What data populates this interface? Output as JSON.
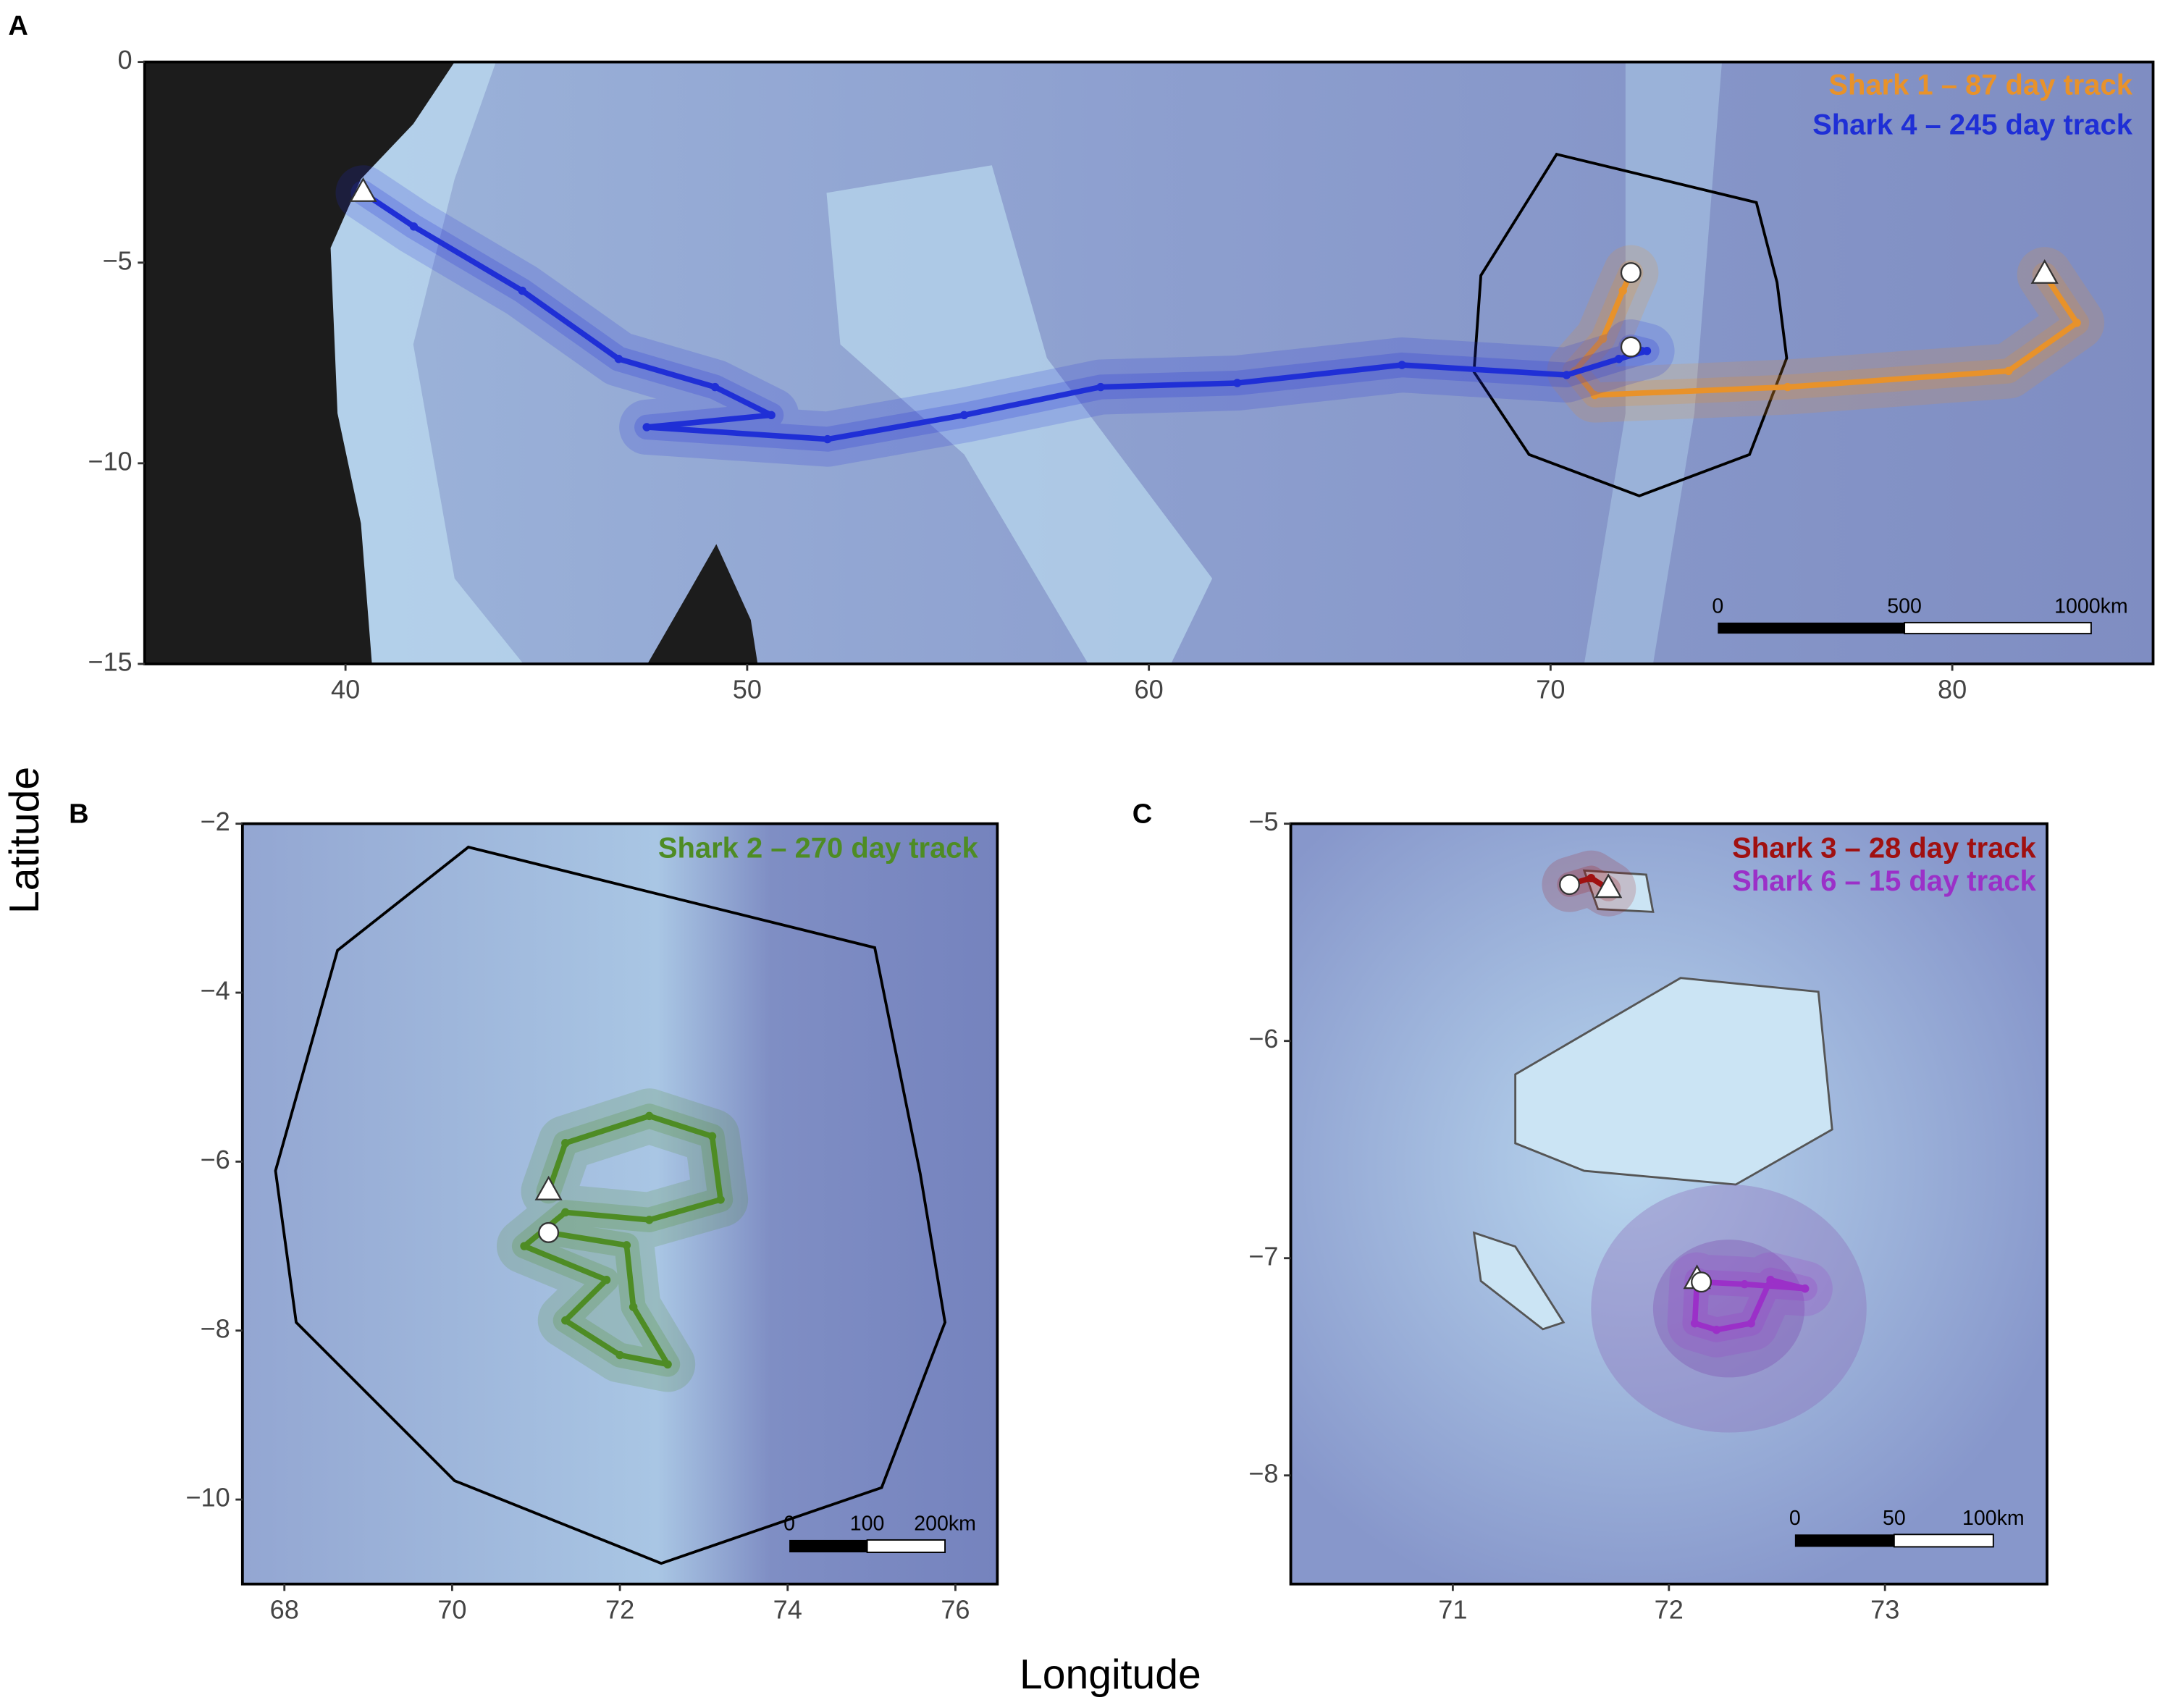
{
  "labels": {
    "x": "Longitude",
    "y": "Latitude"
  },
  "chart_data": [
    {
      "type": "line",
      "panel": "A",
      "xlim": [
        35,
        85
      ],
      "ylim": [
        -15,
        0
      ],
      "xticks": [
        40,
        50,
        60,
        70,
        80
      ],
      "yticks": [
        {
          "value": 0,
          "label": "0"
        },
        {
          "value": -5,
          "label": "−5"
        },
        {
          "value": -10,
          "label": "−10"
        },
        {
          "value": -15,
          "label": "−15"
        }
      ],
      "series": [
        {
          "name": "Shark 1 – 87 day track",
          "color": "#e8922a",
          "x": [
            82.3,
            83.1,
            81.4,
            75.9,
            71.1,
            70.6,
            71.3,
            71.8,
            72.0
          ],
          "values": [
            -5.3,
            -6.5,
            -7.7,
            -8.1,
            -8.3,
            -7.7,
            -6.9,
            -5.7,
            -5.25
          ]
        },
        {
          "name": "Shark 4 – 245 day track",
          "color": "#1f2fd6",
          "x": [
            40.44,
            41.7,
            44.4,
            46.8,
            49.2,
            50.6,
            47.5,
            52.0,
            55.4,
            58.8,
            62.2,
            66.3,
            70.4,
            71.7,
            72.4,
            72.0
          ],
          "values": [
            -3.26,
            -4.1,
            -5.7,
            -7.4,
            -8.1,
            -8.8,
            -9.1,
            -9.4,
            -8.8,
            -8.1,
            -8.0,
            -7.55,
            -7.8,
            -7.4,
            -7.2,
            -7.1
          ]
        }
      ],
      "scale_bar": [
        "0",
        "500",
        "1000km"
      ]
    },
    {
      "type": "line",
      "panel": "B",
      "xlim": [
        67.5,
        76.5
      ],
      "ylim": [
        -11,
        -2
      ],
      "xticks": [
        68,
        70,
        72,
        74,
        76
      ],
      "yticks": [
        {
          "value": -2,
          "label": "−2"
        },
        {
          "value": -4,
          "label": "−4"
        },
        {
          "value": -6,
          "label": "−6"
        },
        {
          "value": -8,
          "label": "−8"
        },
        {
          "value": -10,
          "label": "−10"
        }
      ],
      "series": [
        {
          "name": "Shark 2 – 270 day track",
          "color": "#4e8c24",
          "x": [
            71.15,
            71.35,
            72.35,
            73.1,
            73.2,
            72.35,
            71.35,
            70.86,
            71.84,
            71.35,
            72.0,
            72.57,
            72.16,
            72.08,
            71.15
          ],
          "values": [
            -6.35,
            -5.78,
            -5.46,
            -5.7,
            -6.45,
            -6.69,
            -6.6,
            -7.0,
            -7.4,
            -7.88,
            -8.29,
            -8.4,
            -7.72,
            -6.99,
            -6.84
          ]
        }
      ],
      "scale_bar": [
        "0",
        "100",
        "200km"
      ]
    },
    {
      "type": "line",
      "panel": "C",
      "xlim": [
        70.25,
        73.75
      ],
      "ylim": [
        -8.5,
        -5
      ],
      "xticks": [
        71,
        72,
        73
      ],
      "yticks": [
        {
          "value": -5,
          "label": "−5"
        },
        {
          "value": -6,
          "label": "−6"
        },
        {
          "value": -7,
          "label": "−7"
        },
        {
          "value": -8,
          "label": "−8"
        }
      ],
      "series": [
        {
          "name": "Shark 3 – 28 day track",
          "color": "#a01010",
          "x": [
            71.72,
            71.64,
            71.54
          ],
          "values": [
            -5.3,
            -5.25,
            -5.28
          ]
        },
        {
          "name": "Shark 6 – 15 day track",
          "color": "#9b30c8",
          "x": [
            72.13,
            72.12,
            72.22,
            72.38,
            72.47,
            72.63,
            72.35,
            72.15
          ],
          "values": [
            -7.1,
            -7.3,
            -7.33,
            -7.3,
            -7.1,
            -7.14,
            -7.12,
            -7.11
          ]
        }
      ],
      "scale_bar": [
        "0",
        "50",
        "100km"
      ]
    }
  ]
}
